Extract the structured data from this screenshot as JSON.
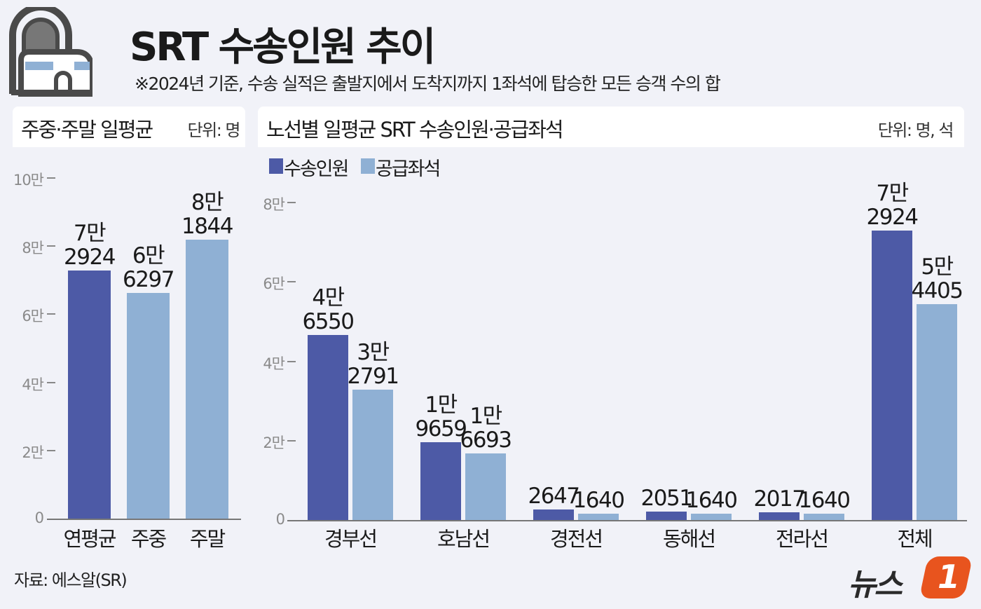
{
  "header": {
    "title": "SRT 수송인원 추이",
    "note": "※2024년 기준, 수송 실적은 출발지에서 도착지까지 1좌석에 탑승한 모든 승객 수의 합",
    "icon": "train-tunnel-icon"
  },
  "colors": {
    "primary": "#4d5aa6",
    "secondary": "#8fb0d4",
    "background": "#f1f2f8",
    "logo_orange": "#e8541e"
  },
  "chart_data": [
    {
      "type": "bar",
      "title": "주중·주말 일평균",
      "unit": "단위: 명",
      "categories": [
        "연평균",
        "주중",
        "주말"
      ],
      "values": [
        72924,
        66297,
        81844
      ],
      "labels": [
        [
          "7만",
          "2924"
        ],
        [
          "6만",
          "6297"
        ],
        [
          "8만",
          "1844"
        ]
      ],
      "bar_colors": [
        "primary",
        "secondary",
        "secondary"
      ],
      "ylim": [
        0,
        100000
      ],
      "yticks": [
        0,
        20000,
        40000,
        60000,
        80000,
        100000
      ],
      "ytick_labels": [
        "0",
        "2만",
        "4만",
        "6만",
        "8만",
        "10만"
      ],
      "grid": false
    },
    {
      "type": "bar",
      "title": "노선별 일평균 SRT 수송인원·공급좌석",
      "unit": "단위: 명, 석",
      "legend_position": "top-left",
      "categories": [
        "경부선",
        "호남선",
        "경전선",
        "동해선",
        "전라선",
        "전체"
      ],
      "series": [
        {
          "name": "수송인원",
          "color": "primary",
          "values": [
            46550,
            19659,
            2647,
            2051,
            2017,
            72924
          ],
          "labels": [
            [
              "4만",
              "6550"
            ],
            [
              "1만",
              "9659"
            ],
            [
              "2647"
            ],
            [
              "2051"
            ],
            [
              "2017"
            ],
            [
              "7만",
              "2924"
            ]
          ]
        },
        {
          "name": "공급좌석",
          "color": "secondary",
          "values": [
            32791,
            16693,
            1640,
            1640,
            1640,
            54405
          ],
          "labels": [
            [
              "3만",
              "2791"
            ],
            [
              "1만",
              "6693"
            ],
            [
              "1640"
            ],
            [
              "1640"
            ],
            [
              "1640"
            ],
            [
              "5만",
              "4405"
            ]
          ]
        }
      ],
      "ylim": [
        0,
        80000
      ],
      "yticks": [
        0,
        20000,
        40000,
        60000,
        80000
      ],
      "ytick_labels": [
        "0",
        "2만",
        "4만",
        "6만",
        "8만"
      ],
      "grid": false
    }
  ],
  "footer": {
    "source": "자료: 에스알(SR)",
    "logo_text": "뉴스",
    "logo_mark": "1"
  }
}
